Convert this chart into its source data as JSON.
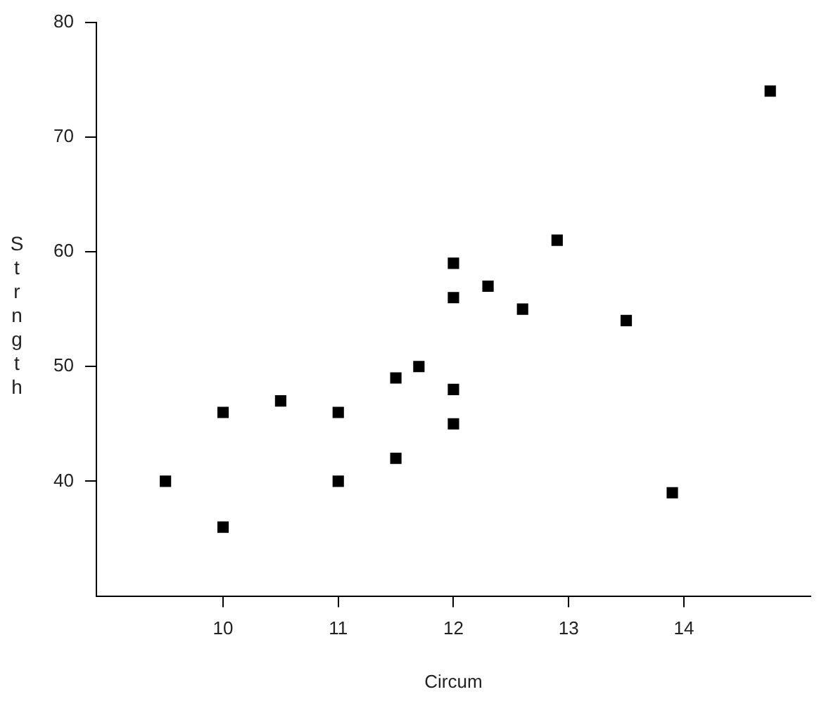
{
  "chart_data": {
    "type": "scatter",
    "xlabel": "Circum",
    "ylabel": "Strngth",
    "x": [
      9.5,
      10,
      10,
      10.5,
      11,
      11,
      11.5,
      11.5,
      11.7,
      12,
      12,
      12,
      12,
      12.3,
      12.6,
      12.9,
      13.5,
      13.9,
      14.75
    ],
    "values": [
      40,
      36,
      46,
      47,
      46,
      40,
      42,
      49,
      50,
      45,
      48,
      56,
      59,
      57,
      55,
      61,
      54,
      39,
      74
    ],
    "color": "#000000",
    "marker": "square",
    "xlim": [
      8.9,
      15.1
    ],
    "xticks": [
      10,
      11,
      12,
      13,
      14
    ],
    "ylim": [
      30,
      80
    ],
    "yticks": [
      40,
      50,
      60,
      70,
      80
    ],
    "grid": false,
    "legend": false
  }
}
